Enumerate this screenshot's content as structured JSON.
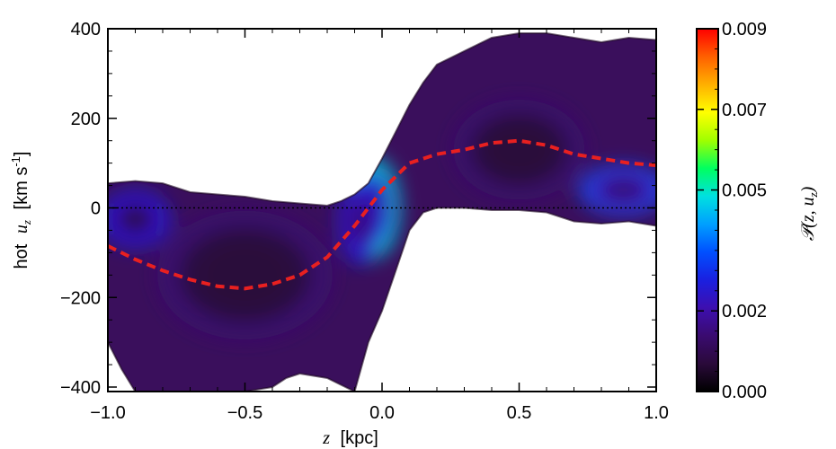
{
  "chart_data": {
    "type": "heatmap",
    "xlabel_var": "z",
    "xlabel_unit": "[kpc]",
    "ylabel_prefix": "hot",
    "ylabel_var": "u",
    "ylabel_sub": "z",
    "ylabel_unit": "[km s",
    "ylabel_unit_sup": "-1",
    "ylabel_unit_end": "]",
    "xlim": [
      -1.0,
      1.0
    ],
    "ylim": [
      -410,
      400
    ],
    "x_ticks": [
      {
        "value": -1.0,
        "label": "−1.0"
      },
      {
        "value": -0.5,
        "label": "−0.5"
      },
      {
        "value": 0.0,
        "label": "0.0"
      },
      {
        "value": 0.5,
        "label": "0.5"
      },
      {
        "value": 1.0,
        "label": "1.0"
      }
    ],
    "y_ticks": [
      {
        "value": 400,
        "label": "400"
      },
      {
        "value": 200,
        "label": "200"
      },
      {
        "value": 0,
        "label": "0"
      },
      {
        "value": -200,
        "label": "−200"
      },
      {
        "value": -400,
        "label": "−400"
      }
    ],
    "zero_line": true,
    "distribution": {
      "upper_envelope": {
        "x": [
          -1.0,
          -0.9,
          -0.8,
          -0.7,
          -0.6,
          -0.5,
          -0.4,
          -0.3,
          -0.2,
          -0.15,
          -0.1,
          -0.05,
          0.0,
          0.05,
          0.1,
          0.15,
          0.2,
          0.3,
          0.4,
          0.5,
          0.6,
          0.7,
          0.8,
          0.9,
          1.0
        ],
        "y": [
          55,
          60,
          55,
          35,
          30,
          25,
          15,
          10,
          5,
          15,
          30,
          55,
          110,
          170,
          230,
          280,
          320,
          350,
          380,
          390,
          390,
          380,
          370,
          380,
          375
        ]
      },
      "lower_envelope": {
        "x": [
          -1.0,
          -0.95,
          -0.9,
          -0.8,
          -0.7,
          -0.6,
          -0.5,
          -0.4,
          -0.35,
          -0.3,
          -0.2,
          -0.1,
          -0.05,
          0.0,
          0.05,
          0.1,
          0.15,
          0.2,
          0.3,
          0.4,
          0.5,
          0.6,
          0.7,
          0.8,
          0.9,
          1.0
        ],
        "y": [
          -300,
          -360,
          -410,
          -410,
          -410,
          -410,
          -410,
          -400,
          -380,
          -370,
          -380,
          -410,
          -300,
          -230,
          -140,
          -50,
          -10,
          0,
          0,
          -5,
          -5,
          -10,
          -30,
          -35,
          -30,
          -40
        ]
      },
      "density_peaks": [
        {
          "x": -0.03,
          "y": 0,
          "sx": 0.06,
          "sy": 70,
          "amp": 0.0045
        },
        {
          "x": -0.08,
          "y": -30,
          "sx": 0.05,
          "sy": 60,
          "amp": 0.003
        },
        {
          "x": -0.9,
          "y": -25,
          "sx": 0.08,
          "sy": 40,
          "amp": 0.0028
        },
        {
          "x": 0.88,
          "y": 40,
          "sx": 0.1,
          "sy": 35,
          "amp": 0.0032
        },
        {
          "x": 0.5,
          "y": 130,
          "sx": 0.15,
          "sy": 70,
          "amp": 0.0012
        },
        {
          "x": -0.5,
          "y": -150,
          "sx": 0.2,
          "sy": 90,
          "amp": 0.0012
        }
      ]
    },
    "mean_curve": {
      "color": "#e82020",
      "style": "dashed",
      "x": [
        -1.0,
        -0.9,
        -0.8,
        -0.7,
        -0.6,
        -0.5,
        -0.4,
        -0.3,
        -0.2,
        -0.1,
        0.0,
        0.1,
        0.2,
        0.3,
        0.4,
        0.5,
        0.6,
        0.7,
        0.8,
        0.9,
        1.0
      ],
      "y": [
        -85,
        -115,
        -140,
        -160,
        -175,
        -180,
        -170,
        -150,
        -110,
        -40,
        40,
        100,
        120,
        130,
        145,
        150,
        140,
        120,
        110,
        100,
        95
      ]
    },
    "colorbar": {
      "label_symbol": "𝒫",
      "label_args": "(z, u",
      "label_sub": "z",
      "label_end": ")",
      "range": [
        0.0,
        0.009
      ],
      "ticks": [
        {
          "value": 0.009,
          "label": "0.009"
        },
        {
          "value": 0.007,
          "label": "0.007"
        },
        {
          "value": 0.005,
          "label": "0.005"
        },
        {
          "value": 0.002,
          "label": "0.002"
        },
        {
          "value": 0.0,
          "label": "0.000"
        }
      ],
      "colormap": [
        "#000000",
        "#2a0a3a",
        "#3a0b70",
        "#3d0fb0",
        "#1a20e0",
        "#0050ff",
        "#00a0ff",
        "#00e0e0",
        "#00ff60",
        "#a0ff00",
        "#ffff00",
        "#ffb000",
        "#ff6000",
        "#ff0000"
      ]
    }
  }
}
